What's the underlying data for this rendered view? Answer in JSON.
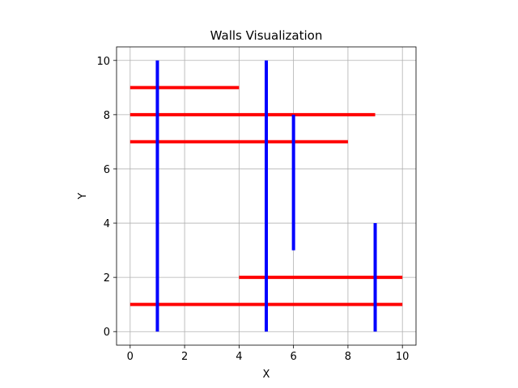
{
  "chart_data": {
    "type": "line",
    "title": "Walls Visualization",
    "xlabel": "X",
    "ylabel": "Y",
    "xlim": [
      -0.5,
      10.5
    ],
    "ylim": [
      -0.5,
      10.5
    ],
    "xticks": [
      0,
      2,
      4,
      6,
      8,
      10
    ],
    "yticks": [
      0,
      2,
      4,
      6,
      8,
      10
    ],
    "grid": true,
    "legend": "none",
    "colors": {
      "horizontal": "#ff0000",
      "vertical": "#0000ff"
    },
    "horizontal_walls": [
      {
        "y": 9,
        "x": [
          0,
          4
        ]
      },
      {
        "y": 8,
        "x": [
          0,
          9
        ]
      },
      {
        "y": 7,
        "x": [
          0,
          8
        ]
      },
      {
        "y": 2,
        "x": [
          4,
          10
        ]
      },
      {
        "y": 1,
        "x": [
          0,
          10
        ]
      }
    ],
    "vertical_walls": [
      {
        "x": 1,
        "y": [
          0,
          10
        ]
      },
      {
        "x": 5,
        "y": [
          0,
          10
        ]
      },
      {
        "x": 6,
        "y": [
          3,
          8
        ]
      },
      {
        "x": 9,
        "y": [
          0,
          4
        ]
      }
    ]
  }
}
